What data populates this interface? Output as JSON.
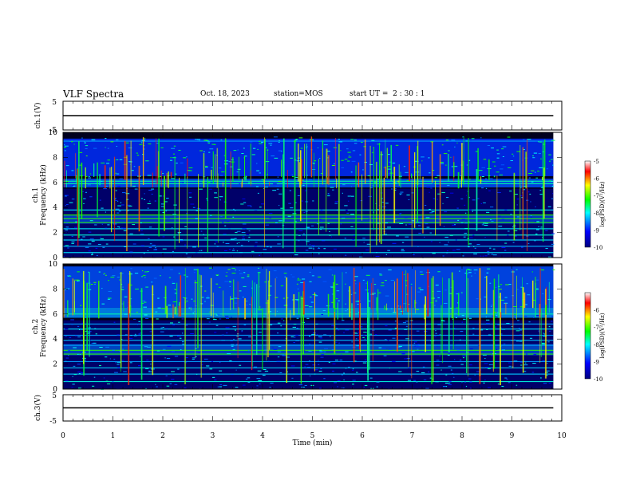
{
  "header": {
    "title": "VLF Spectra",
    "date": "Oct. 18, 2023",
    "station": "station=MOS",
    "start": "start UT =  2 : 30 : 1"
  },
  "chart_data": [
    {
      "type": "line",
      "panel": "ch1-voltage",
      "ylabel": "ch.1(V)",
      "ylim": [
        -5,
        5
      ],
      "ytick_labels": [
        "5",
        "-5"
      ],
      "x": [
        0,
        9.83
      ],
      "series": [
        {
          "values": [
            0,
            0
          ]
        }
      ],
      "color": "#000000"
    },
    {
      "type": "heatmap",
      "panel": "ch1-spectrogram",
      "ylabel": "ch.1\nFrequency (kHz)",
      "ylim": [
        0,
        10
      ],
      "ytick_labels": [
        "0",
        "2",
        "4",
        "6",
        "8",
        "10"
      ],
      "xlim": [
        0,
        9.83
      ],
      "colorbar": {
        "label": "log(PSD)(V²/Hz)",
        "range": [
          -10,
          -5
        ],
        "tick_labels": [
          "-5",
          "-6",
          "-7",
          "-8",
          "-9",
          "-10"
        ],
        "colors": [
          "#00007f",
          "#0000ff",
          "#00ffff",
          "#00ff00",
          "#ffff00",
          "#ff0000",
          "#ffffff"
        ]
      },
      "background_lines_khz": [
        0.4,
        0.9,
        1.4,
        1.8,
        2.3,
        2.8,
        3.1,
        3.4,
        3.8,
        5.9,
        6.1,
        9.3
      ],
      "bands": [
        {
          "from_khz": 2.7,
          "to_khz": 3.4,
          "level": 0.55
        },
        {
          "from_khz": 5.6,
          "to_khz": 6.3,
          "level": 0.45
        },
        {
          "from_khz": 6.5,
          "to_khz": 9.5,
          "level": 0.4
        }
      ]
    },
    {
      "type": "heatmap",
      "panel": "ch2-spectrogram",
      "ylabel": "ch.2\nFrequency (kHz)",
      "ylim": [
        0,
        10
      ],
      "ytick_labels": [
        "0",
        "2",
        "4",
        "6",
        "8",
        "10"
      ],
      "xlim": [
        0,
        9.83
      ],
      "colorbar": {
        "label": "log(PSD)(V²/Hz)",
        "range": [
          -10,
          -5
        ],
        "tick_labels": [
          "-6",
          "-7",
          "-8",
          "-9",
          "-10"
        ],
        "colors": [
          "#00007f",
          "#0000ff",
          "#00ffff",
          "#00ff00",
          "#ffff00",
          "#ff0000",
          "#ffffff"
        ]
      },
      "background_lines_khz": [
        0.6,
        1.2,
        1.7,
        2.2,
        2.8,
        3.1,
        3.5,
        3.9,
        4.3,
        4.8,
        5.2,
        6.0
      ],
      "bands": [
        {
          "from_khz": 2.7,
          "to_khz": 3.6,
          "level": 0.6
        },
        {
          "from_khz": 5.7,
          "to_khz": 6.5,
          "level": 0.55
        },
        {
          "from_khz": 6.5,
          "to_khz": 9.8,
          "level": 0.45
        }
      ]
    },
    {
      "type": "line",
      "panel": "ch3-voltage",
      "ylabel": "ch.3(V)",
      "ylim": [
        -5,
        5
      ],
      "ytick_labels": [
        "5",
        "-5"
      ],
      "x": [
        0,
        9.83
      ],
      "series": [
        {
          "values": [
            0,
            0
          ]
        }
      ],
      "color": "#000000"
    }
  ],
  "xaxis": {
    "label": "Time  (min)",
    "range": [
      0,
      10
    ],
    "tick_labels": [
      "0",
      "1",
      "2",
      "3",
      "4",
      "5",
      "6",
      "7",
      "8",
      "9",
      "10"
    ]
  }
}
